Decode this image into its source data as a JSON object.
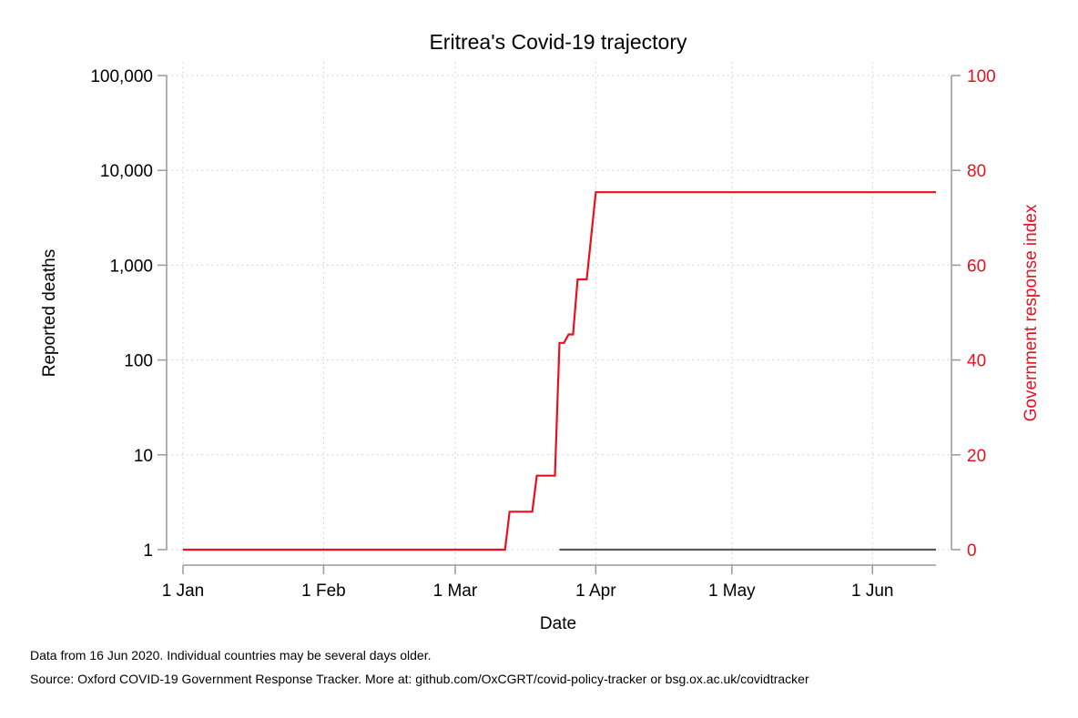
{
  "chart_data": {
    "type": "line",
    "title": "Eritrea's Covid-19 trajectory",
    "xlabel": "Date",
    "ylabel_left": "Reported deaths",
    "ylabel_right": "Government response index",
    "colors": {
      "deaths": "#595959",
      "response": "#e8101e",
      "grid": "#c8c8c8",
      "axis": "#999999"
    },
    "x_range": [
      "2020-01-01",
      "2020-06-15"
    ],
    "x_ticks": [
      {
        "date": "2020-01-01",
        "label": "1 Jan"
      },
      {
        "date": "2020-02-01",
        "label": "1 Feb"
      },
      {
        "date": "2020-03-01",
        "label": "1 Mar"
      },
      {
        "date": "2020-04-01",
        "label": "1 Apr"
      },
      {
        "date": "2020-05-01",
        "label": "1 May"
      },
      {
        "date": "2020-06-01",
        "label": "1 Jun"
      }
    ],
    "y_left": {
      "scale": "log",
      "range": [
        1,
        100000
      ],
      "ticks": [
        {
          "value": 1,
          "label": "1"
        },
        {
          "value": 10,
          "label": "10"
        },
        {
          "value": 100,
          "label": "100"
        },
        {
          "value": 1000,
          "label": "1,000"
        },
        {
          "value": 10000,
          "label": "10,000"
        },
        {
          "value": 100000,
          "label": "100,000"
        }
      ]
    },
    "y_right": {
      "scale": "linear",
      "range": [
        0,
        100
      ],
      "ticks": [
        {
          "value": 0,
          "label": "0"
        },
        {
          "value": 20,
          "label": "20"
        },
        {
          "value": 40,
          "label": "40"
        },
        {
          "value": 60,
          "label": "60"
        },
        {
          "value": 80,
          "label": "80"
        },
        {
          "value": 100,
          "label": "100"
        }
      ]
    },
    "grid": true,
    "series": [
      {
        "key": "deaths",
        "axis": "left",
        "step": true,
        "points": [
          {
            "date": "2020-03-24",
            "value": 1
          },
          {
            "date": "2020-06-15",
            "value": 1
          }
        ]
      },
      {
        "key": "response",
        "axis": "right",
        "step": true,
        "points": [
          {
            "date": "2020-01-01",
            "value": 0
          },
          {
            "date": "2020-03-12",
            "value": 0
          },
          {
            "date": "2020-03-13",
            "value": 8
          },
          {
            "date": "2020-03-18",
            "value": 8
          },
          {
            "date": "2020-03-19",
            "value": 15.6
          },
          {
            "date": "2020-03-23",
            "value": 15.6
          },
          {
            "date": "2020-03-24",
            "value": 43.6
          },
          {
            "date": "2020-03-25",
            "value": 43.6
          },
          {
            "date": "2020-03-26",
            "value": 45.4
          },
          {
            "date": "2020-03-27",
            "value": 45.4
          },
          {
            "date": "2020-03-28",
            "value": 57
          },
          {
            "date": "2020-03-30",
            "value": 57
          },
          {
            "date": "2020-04-01",
            "value": 75.4
          },
          {
            "date": "2020-06-15",
            "value": 75.4
          }
        ]
      }
    ]
  },
  "footer": {
    "note1": "Data from 16 Jun 2020. Individual countries may be several days older.",
    "note2": "Source: Oxford COVID-19 Government Response Tracker. More at: github.com/OxCGRT/covid-policy-tracker or bsg.ox.ac.uk/covidtracker"
  }
}
